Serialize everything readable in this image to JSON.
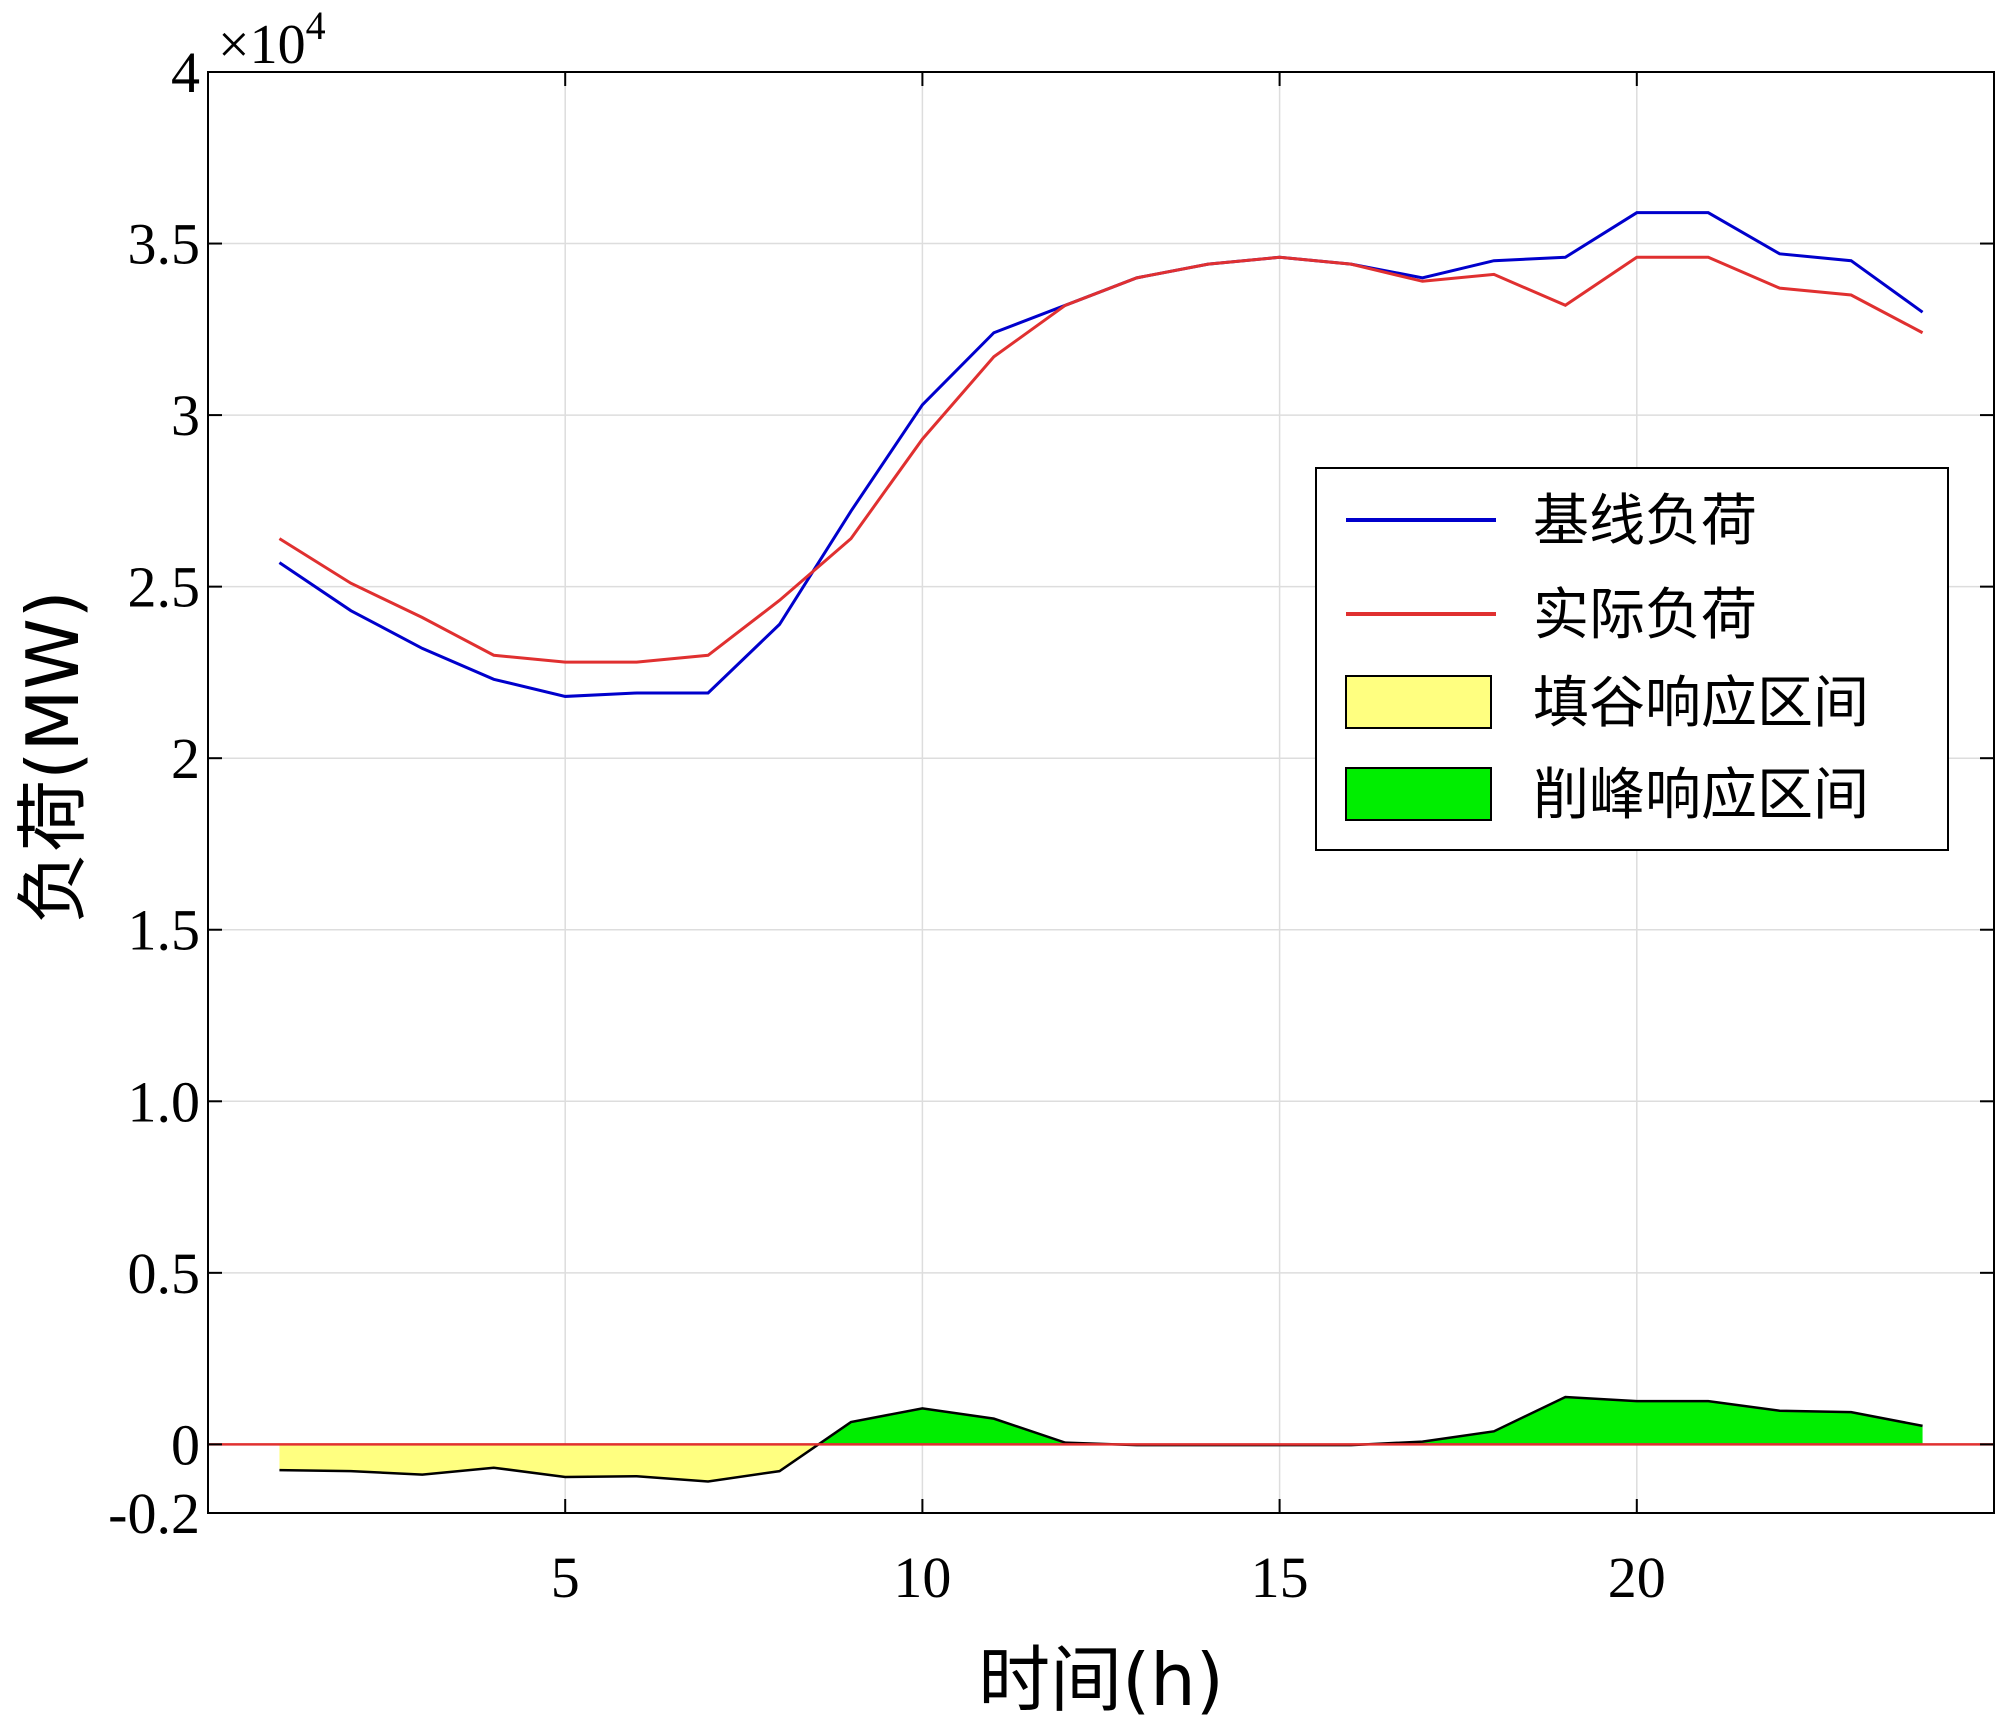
{
  "chart_data": {
    "type": "line",
    "xlabel": "时间(h)",
    "ylabel": "负荷(MW)",
    "y_multiplier": "×10",
    "y_multiplier_exp": "4",
    "xlim": [
      0,
      25
    ],
    "ylim": [
      -0.2,
      4
    ],
    "xticks": [
      {
        "value": 5,
        "label": "5"
      },
      {
        "value": 10,
        "label": "10"
      },
      {
        "value": 15,
        "label": "15"
      },
      {
        "value": 20,
        "label": "20"
      }
    ],
    "yticks": [
      {
        "value": -0.2,
        "label": "-0.2"
      },
      {
        "value": 0,
        "label": "0"
      },
      {
        "value": 0.5,
        "label": "0.5"
      },
      {
        "value": 1.0,
        "label": "1.0"
      },
      {
        "value": 1.5,
        "label": "1.5"
      },
      {
        "value": 2,
        "label": "2"
      },
      {
        "value": 2.5,
        "label": "2.5"
      },
      {
        "value": 3,
        "label": "3"
      },
      {
        "value": 3.5,
        "label": "3.5"
      },
      {
        "value": 4,
        "label": "4"
      }
    ],
    "grid": true,
    "legend_position": "right",
    "x": [
      1,
      2,
      3,
      4,
      5,
      6,
      7,
      8,
      9,
      10,
      11,
      12,
      13,
      14,
      15,
      16,
      17,
      18,
      19,
      20,
      21,
      22,
      23,
      24
    ],
    "series": [
      {
        "name": "基线负荷",
        "color": "#0000cc",
        "values": [
          2.57,
          2.43,
          2.32,
          2.23,
          2.18,
          2.19,
          2.19,
          2.39,
          2.72,
          3.03,
          3.24,
          3.32,
          3.4,
          3.44,
          3.46,
          3.44,
          3.4,
          3.45,
          3.46,
          3.59,
          3.59,
          3.47,
          3.45,
          3.3
        ]
      },
      {
        "name": "实际负荷",
        "color": "#e03030",
        "values": [
          2.64,
          2.51,
          2.41,
          2.3,
          2.28,
          2.28,
          2.3,
          2.46,
          2.64,
          2.93,
          3.17,
          3.32,
          3.4,
          3.44,
          3.46,
          3.44,
          3.39,
          3.41,
          3.32,
          3.46,
          3.46,
          3.37,
          3.35,
          3.24
        ]
      }
    ],
    "difference_series": {
      "name_valley": "填谷响应区间",
      "name_peak": "削峰响应区间",
      "color_valley": "#ffff80",
      "color_peak": "#00ee00",
      "reference_color": "#e03030",
      "values": [
        -0.075,
        -0.078,
        -0.088,
        -0.068,
        -0.095,
        -0.093,
        -0.108,
        -0.078,
        0.065,
        0.105,
        0.075,
        0.005,
        -0.002,
        -0.002,
        -0.002,
        -0.002,
        0.008,
        0.038,
        0.138,
        0.126,
        0.126,
        0.098,
        0.094,
        0.054
      ]
    }
  }
}
